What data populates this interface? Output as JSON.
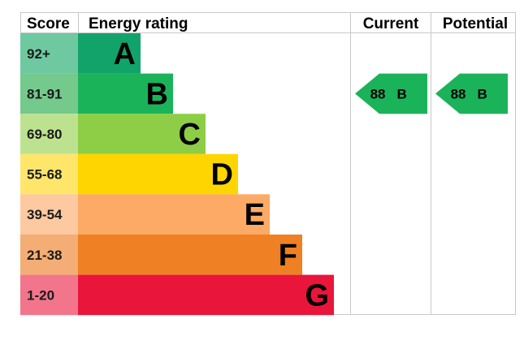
{
  "headers": {
    "score": "Score",
    "energy_rating": "Energy rating",
    "current": "Current",
    "potential": "Potential"
  },
  "chart_data": {
    "type": "bar",
    "bands": [
      {
        "score": "92+",
        "letter": "A",
        "color": "#12a36b",
        "score_bg": "#6ec9a0"
      },
      {
        "score": "81-91",
        "letter": "B",
        "color": "#1bb35a",
        "score_bg": "#74c98c"
      },
      {
        "score": "69-80",
        "letter": "C",
        "color": "#8dce46",
        "score_bg": "#bde28f"
      },
      {
        "score": "55-68",
        "letter": "D",
        "color": "#ffd500",
        "score_bg": "#ffe66b"
      },
      {
        "score": "39-54",
        "letter": "E",
        "color": "#fcaa65",
        "score_bg": "#fdc9a0"
      },
      {
        "score": "21-38",
        "letter": "F",
        "color": "#ef8023",
        "score_bg": "#f4ad74"
      },
      {
        "score": "1-20",
        "letter": "G",
        "color": "#e9153b",
        "score_bg": "#f2758b"
      }
    ],
    "current": {
      "value": 88,
      "letter": "B",
      "color": "#1bb35a"
    },
    "potential": {
      "value": 88,
      "letter": "B",
      "color": "#1bb35a"
    }
  }
}
